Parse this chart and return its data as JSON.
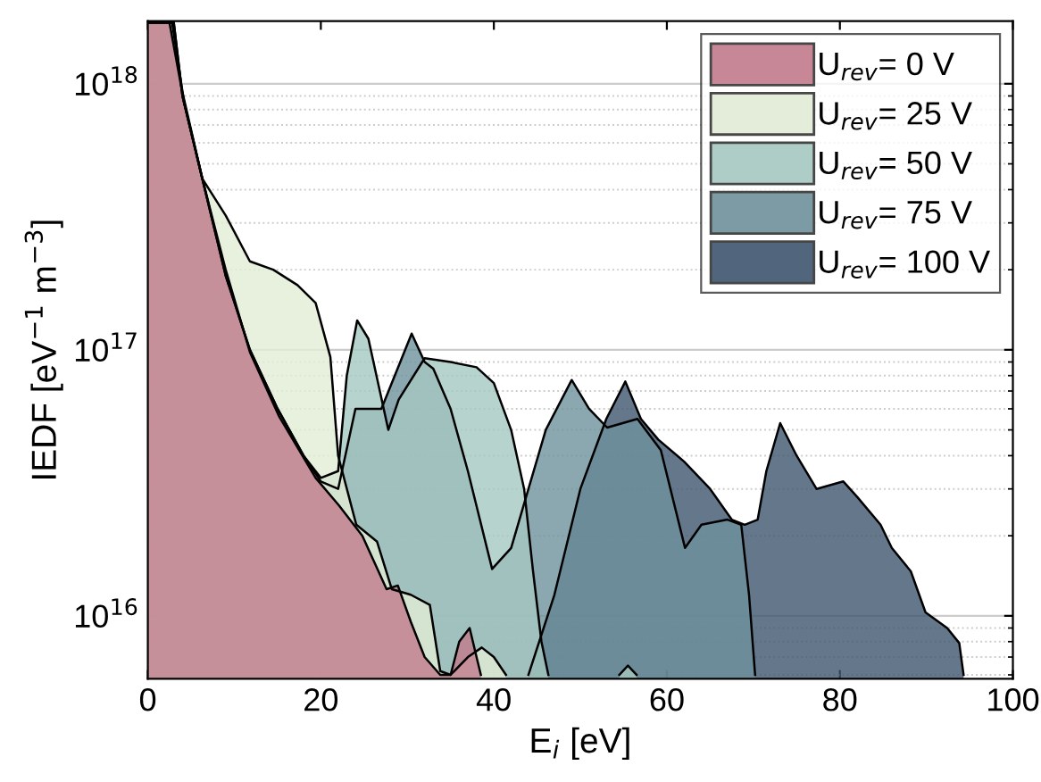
{
  "chart_data": {
    "type": "area",
    "xlabel": "E$_{i}$ [eV]",
    "ylabel": "IEDF [eV$^{−1}$ m$^{−3}$]",
    "log": "y",
    "grid": "y",
    "legend": "top right",
    "xlim": [
      0,
      100
    ],
    "xticks": [
      0,
      20,
      40,
      60,
      80,
      100
    ],
    "ylim": [
      5800000000000000.0,
      1.72e+18
    ],
    "yticks": [
      {
        "value": 1e+16,
        "label": "10$^{16}$"
      },
      {
        "value": 1e+17,
        "label": "10$^{17}$"
      },
      {
        "value": 1e+18,
        "label": "10$^{18}$"
      }
    ],
    "series": [
      {
        "name": "U$_{rev}$= 0 V",
        "color": "#c27b8c",
        "x": [
          0,
          2.5,
          3.9,
          6.3,
          9.0,
          11.8,
          15.2,
          19.4,
          22.1,
          24.8,
          27.6,
          28.9,
          30.4,
          32,
          33.8,
          35,
          36,
          37.2,
          38,
          38.5
        ],
        "values": [
          1.7e+18,
          1.7e+18,
          9.6e+17,
          4.4e+17,
          2e+17,
          9.8e+16,
          5.6e+16,
          3.3e+16,
          2.6e+16,
          2e+16,
          1.26e+16,
          1.3e+16,
          9500000000000000.0,
          7000000000000000.0,
          6000000000000000.0,
          6000000000000000.0,
          8000000000000000.0,
          9000000000000000.0,
          7000000000000000.0,
          6000000000000000.0
        ]
      },
      {
        "name": "U$_{rev}$= 25 V",
        "color": "#e2ecd6",
        "x": [
          0,
          2.8,
          4.2,
          6.3,
          9.0,
          11.8,
          14.5,
          17.3,
          19.4,
          21.1,
          22,
          24.1,
          26.5,
          28.2,
          30.4,
          32.6,
          33.8,
          35,
          37,
          38.6,
          40,
          41.4
        ],
        "values": [
          1.7e+18,
          1.7e+18,
          8.5e+17,
          4.4e+17,
          3.2e+17,
          2.15e+17,
          2e+17,
          1.75e+17,
          1.5e+17,
          9.4e+16,
          4e+16,
          2.2e+16,
          1.9e+16,
          1.26e+16,
          1.2e+16,
          1.1e+16,
          6200000000000000.0,
          6000000000000000.0,
          7000000000000000.0,
          7600000000000000.0,
          7000000000000000.0,
          6000000000000000.0
        ]
      },
      {
        "name": "U$_{rev}$= 50 V",
        "color": "#a5c8c0",
        "x": [
          0,
          3,
          4,
          6.3,
          9,
          11.8,
          15,
          18,
          20,
          22,
          23,
          24.2,
          25.5,
          27.8,
          29,
          32,
          35,
          38,
          40,
          42,
          43.5,
          44.5,
          45.5,
          46.3,
          50,
          54.5,
          55.5,
          56.5
        ],
        "values": [
          1.7e+18,
          1.7e+18,
          9e+17,
          4.4e+17,
          1.9e+17,
          1e+17,
          6e+16,
          4e+16,
          3.3e+16,
          3.5e+16,
          8e+16,
          1.29e+17,
          1.1e+17,
          5e+16,
          6.5e+16,
          9.3e+16,
          9e+16,
          8.6e+16,
          7.5e+16,
          5e+16,
          3e+16,
          1.5e+16,
          8000000000000000.0,
          6000000000000000.0,
          null,
          6000000000000000.0,
          6500000000000000.0,
          6000000000000000.0
        ]
      },
      {
        "name": "U$_{rev}$= 75 V",
        "color": "#6e919c",
        "x": [
          0,
          3,
          4,
          6.3,
          9,
          11.8,
          15,
          18,
          20,
          22,
          24,
          27,
          30.5,
          32,
          33,
          35,
          37,
          39.8,
          42,
          44,
          46,
          49,
          51,
          53.1,
          56.6,
          59.3,
          62.1,
          64,
          67,
          68.6,
          69.5,
          70.2
        ],
        "values": [
          1.7e+18,
          1.7e+18,
          9e+17,
          4.4e+17,
          1.9e+17,
          1e+17,
          6e+16,
          4e+16,
          3.2e+16,
          3e+16,
          6e+16,
          6e+16,
          1.15e+17,
          9e+16,
          8.5e+16,
          6e+16,
          3.5e+16,
          1.5e+16,
          1.8e+16,
          3e+16,
          5e+16,
          7.7e+16,
          6e+16,
          5.1e+16,
          5.5e+16,
          4.2e+16,
          1.8e+16,
          2.2e+16,
          2.3e+16,
          2.2e+16,
          1.2e+16,
          6000000000000000.0
        ]
      },
      {
        "name": "U$_{rev}$= 100 V",
        "color": "#3f566e",
        "x": [
          44,
          47,
          50,
          53,
          55.2,
          57,
          59,
          62,
          65,
          67.5,
          69,
          70.5,
          71.5,
          73.1,
          75,
          77.3,
          80.4,
          82,
          84.7,
          86,
          88.2,
          89.9,
          92.4,
          93.8,
          94.3
        ],
        "values": [
          6000000000000000.0,
          1.2e+16,
          3e+16,
          5.5e+16,
          7.6e+16,
          5.5e+16,
          4.6e+16,
          3.8e+16,
          3e+16,
          2.3e+16,
          2.2e+16,
          2.3e+16,
          3.5e+16,
          5.3e+16,
          4e+16,
          3e+16,
          3.2e+16,
          2.8e+16,
          2.2e+16,
          1.8e+16,
          1.47e+16,
          1.03e+16,
          9000000000000000.0,
          7900000000000000.0,
          6000000000000000.0
        ]
      }
    ]
  }
}
